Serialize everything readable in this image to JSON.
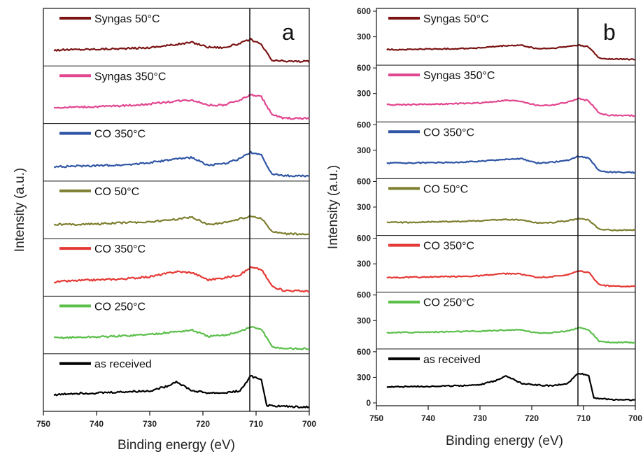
{
  "chart_data": [
    {
      "type": "line",
      "panel_label": "a",
      "xlabel": "Binding energy (eV)",
      "ylabel": "Intensity (a.u.)",
      "xlim": [
        750,
        700
      ],
      "x_reversed": true,
      "x_ticks": [
        750,
        740,
        730,
        720,
        710,
        700
      ],
      "x_tick_labels": [
        "750",
        "740",
        "730",
        "720",
        "710",
        "700"
      ],
      "y_ticks_shown": false,
      "reference_line_x": 711,
      "legend_placement": "top-left of each stacked sub-panel",
      "series": [
        {
          "name": "Syngas 50°C",
          "color": "#7b1414",
          "x": [
            748,
            745,
            740,
            735,
            730,
            725,
            722,
            719,
            716,
            713,
            711,
            709,
            707,
            705,
            700
          ],
          "y": [
            0.25,
            0.26,
            0.27,
            0.28,
            0.3,
            0.36,
            0.4,
            0.31,
            0.3,
            0.38,
            0.46,
            0.35,
            0.05,
            0.04,
            0.03
          ]
        },
        {
          "name": "Syngas 350°C",
          "color": "#e2468f",
          "x": [
            748,
            745,
            740,
            735,
            730,
            725,
            722,
            719,
            716,
            713,
            711,
            709,
            707,
            705,
            700
          ],
          "y": [
            0.25,
            0.26,
            0.27,
            0.29,
            0.32,
            0.38,
            0.4,
            0.3,
            0.3,
            0.4,
            0.5,
            0.46,
            0.12,
            0.05,
            0.04
          ]
        },
        {
          "name": "CO 350°C",
          "color": "#2f55a4",
          "x": [
            748,
            745,
            740,
            735,
            730,
            725,
            722,
            719,
            716,
            713,
            711,
            709,
            707,
            705,
            700
          ],
          "y": [
            0.22,
            0.23,
            0.24,
            0.26,
            0.3,
            0.37,
            0.4,
            0.25,
            0.28,
            0.38,
            0.5,
            0.44,
            0.08,
            0.05,
            0.04
          ]
        },
        {
          "name": "CO 50°C",
          "color": "#7e7f2f",
          "x": [
            748,
            745,
            740,
            735,
            730,
            725,
            722,
            719,
            716,
            713,
            711,
            709,
            707,
            705,
            700
          ],
          "y": [
            0.22,
            0.22,
            0.23,
            0.25,
            0.27,
            0.32,
            0.36,
            0.22,
            0.25,
            0.33,
            0.38,
            0.34,
            0.08,
            0.04,
            0.03
          ]
        },
        {
          "name": "CO 350°C",
          "color": "#e53935",
          "x": [
            748,
            745,
            740,
            735,
            730,
            725,
            722,
            719,
            716,
            713,
            711,
            709,
            707,
            705,
            700
          ],
          "y": [
            0.22,
            0.24,
            0.26,
            0.28,
            0.32,
            0.42,
            0.4,
            0.26,
            0.3,
            0.36,
            0.5,
            0.46,
            0.14,
            0.06,
            0.04
          ]
        },
        {
          "name": "CO 250°C",
          "color": "#5bbf4a",
          "x": [
            748,
            745,
            740,
            735,
            730,
            725,
            722,
            719,
            716,
            713,
            711,
            709,
            707,
            705,
            700
          ],
          "y": [
            0.25,
            0.26,
            0.27,
            0.29,
            0.32,
            0.37,
            0.4,
            0.28,
            0.3,
            0.38,
            0.46,
            0.42,
            0.08,
            0.05,
            0.04
          ]
        },
        {
          "name": "as received",
          "color": "#000000",
          "x": [
            748,
            745,
            740,
            735,
            730,
            727,
            725,
            722,
            719,
            716,
            713,
            711,
            709,
            708,
            705,
            700
          ],
          "y": [
            0.26,
            0.29,
            0.3,
            0.32,
            0.34,
            0.42,
            0.52,
            0.34,
            0.3,
            0.3,
            0.34,
            0.62,
            0.56,
            0.06,
            0.04,
            0.03
          ]
        }
      ]
    },
    {
      "type": "line",
      "panel_label": "b",
      "xlabel": "Binding energy (eV)",
      "ylabel": "Intensity (a.u.)",
      "xlim": [
        750,
        700
      ],
      "x_reversed": true,
      "ylim": [
        0,
        600
      ],
      "x_ticks": [
        750,
        740,
        730,
        720,
        710,
        700
      ],
      "x_tick_labels": [
        "750",
        "740",
        "730",
        "720",
        "710",
        "700"
      ],
      "y_tick_labels": [
        "0",
        "300",
        "600"
      ],
      "reference_line_x": 711,
      "legend_placement": "top-left of each stacked sub-panel",
      "series": [
        {
          "name": "Syngas 50°C",
          "color": "#7b1414",
          "x": [
            748,
            745,
            740,
            735,
            730,
            725,
            722,
            719,
            716,
            713,
            711,
            709,
            707,
            705,
            700
          ],
          "y": [
            150,
            150,
            155,
            160,
            170,
            195,
            200,
            160,
            165,
            185,
            205,
            180,
            50,
            40,
            35
          ]
        },
        {
          "name": "Syngas 350°C",
          "color": "#e2468f",
          "x": [
            748,
            745,
            740,
            735,
            730,
            725,
            722,
            719,
            716,
            713,
            711,
            709,
            707,
            705,
            700
          ],
          "y": [
            170,
            170,
            175,
            180,
            190,
            220,
            210,
            160,
            165,
            200,
            240,
            215,
            70,
            45,
            40
          ]
        },
        {
          "name": "CO 350°C",
          "color": "#2f55a4",
          "x": [
            748,
            745,
            740,
            735,
            730,
            725,
            722,
            719,
            716,
            713,
            711,
            709,
            707,
            705,
            700
          ],
          "y": [
            150,
            150,
            155,
            160,
            170,
            195,
            200,
            150,
            160,
            185,
            230,
            210,
            60,
            45,
            40
          ]
        },
        {
          "name": "CO 50°C",
          "color": "#7e7f2f",
          "x": [
            748,
            745,
            740,
            735,
            730,
            725,
            722,
            719,
            716,
            713,
            711,
            709,
            707,
            705,
            700
          ],
          "y": [
            120,
            120,
            125,
            130,
            140,
            155,
            150,
            115,
            120,
            140,
            165,
            150,
            40,
            30,
            30
          ]
        },
        {
          "name": "CO 350°C",
          "color": "#e53935",
          "x": [
            748,
            745,
            740,
            735,
            730,
            725,
            722,
            719,
            716,
            713,
            711,
            709,
            707,
            705,
            700
          ],
          "y": [
            140,
            140,
            145,
            150,
            160,
            185,
            180,
            140,
            150,
            170,
            215,
            200,
            55,
            40,
            35
          ]
        },
        {
          "name": "CO 250°C",
          "color": "#5bbf4a",
          "x": [
            748,
            745,
            740,
            735,
            730,
            725,
            722,
            719,
            716,
            713,
            711,
            709,
            707,
            705,
            700
          ],
          "y": [
            160,
            160,
            165,
            170,
            175,
            190,
            190,
            155,
            160,
            180,
            215,
            190,
            60,
            45,
            40
          ]
        },
        {
          "name": "as received",
          "color": "#000000",
          "x": [
            748,
            745,
            740,
            735,
            730,
            727,
            725,
            722,
            719,
            716,
            713,
            711,
            709,
            708,
            705,
            700
          ],
          "y": [
            190,
            190,
            195,
            200,
            215,
            260,
            320,
            230,
            210,
            200,
            230,
            350,
            320,
            60,
            40,
            35
          ]
        }
      ]
    }
  ]
}
